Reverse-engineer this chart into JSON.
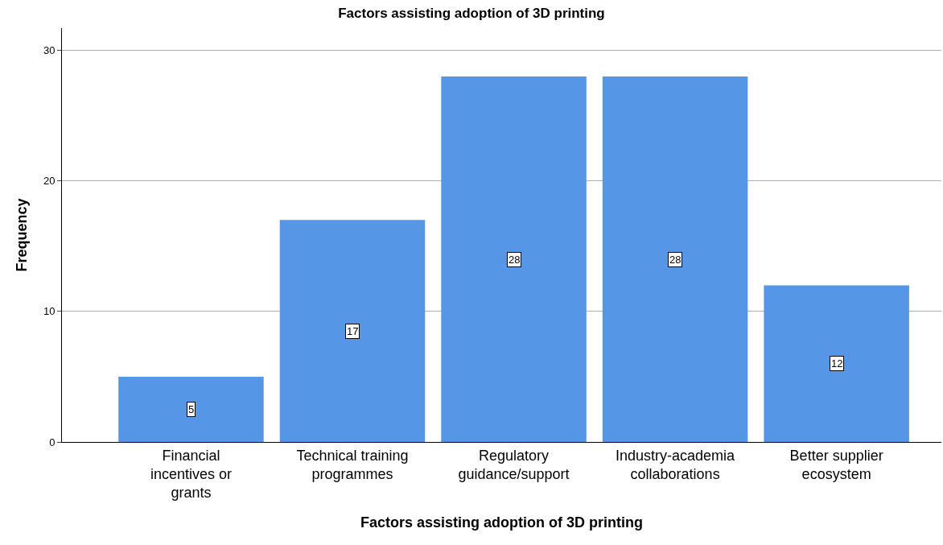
{
  "chart_data": {
    "type": "bar",
    "title": "Factors assisting adoption of 3D printing",
    "xlabel": "Factors assisting adoption of 3D printing",
    "ylabel": "Frequency",
    "categories": [
      "Financial incentives or grants",
      "Technical training programmes",
      "Regulatory guidance/support",
      "Industry-academia collaborations",
      "Better supplier ecosystem"
    ],
    "values": [
      5,
      17,
      28,
      28,
      12
    ],
    "color": "#5596e6",
    "ylim": [
      0,
      31.7
    ],
    "yticks": [
      0,
      10,
      20,
      30
    ],
    "grid": "y",
    "data_labels": true,
    "legend": false
  }
}
